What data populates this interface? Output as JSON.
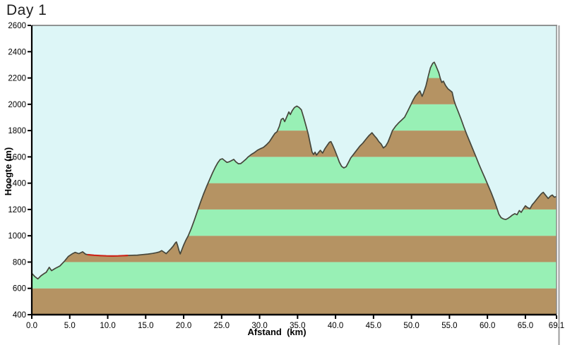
{
  "title": "Day 1",
  "chart_data": {
    "type": "area",
    "title": "Day 1",
    "xlabel": "Afstand  (km)",
    "ylabel": "Hoogte (m)",
    "xlim": [
      0,
      69.1
    ],
    "ylim": [
      400,
      2600
    ],
    "grid": false,
    "legend": false,
    "x_tick_values": [
      0,
      5,
      10,
      15,
      20,
      25,
      30,
      35,
      40,
      45,
      50,
      55,
      60,
      65,
      69.1
    ],
    "x_tick_labels": [
      "0.0",
      "5.0",
      "10.0",
      "15.0",
      "20.0",
      "25.0",
      "30.0",
      "35.0",
      "40.0",
      "45.0",
      "50.0",
      "55.0",
      "60.0",
      "65.0",
      "69.1"
    ],
    "y_tick_values": [
      400,
      600,
      800,
      1000,
      1200,
      1400,
      1600,
      1800,
      2000,
      2200,
      2400,
      2600
    ],
    "y_tick_labels": [
      "400",
      "600",
      "800",
      "1000",
      "1200",
      "1400",
      "1600",
      "1800",
      "2000",
      "2200",
      "2400",
      "2600"
    ],
    "colors": {
      "plot_background": "#ddf6f7",
      "band_brown": "#b59363",
      "band_green": "#98f0b5",
      "outline": "#45463b",
      "highlight_red": "#cd2418",
      "axis": "#000000",
      "frame_top": "#707070",
      "frame_right": "#8c8c8c",
      "window_border": "#9c9c9c",
      "title_color": "#1f1f1f"
    },
    "bands": {
      "start": 400,
      "step": 200,
      "order": [
        "band_brown",
        "band_green"
      ]
    },
    "highlight_segment": {
      "name": "red-route-section",
      "x_start": 7.4,
      "x_end": 12.6
    },
    "series": [
      {
        "name": "hoogteprofiel",
        "points": [
          [
            0,
            715
          ],
          [
            0.4,
            690
          ],
          [
            0.8,
            672
          ],
          [
            1.2,
            695
          ],
          [
            1.6,
            712
          ],
          [
            1.9,
            722
          ],
          [
            2.3,
            760
          ],
          [
            2.6,
            735
          ],
          [
            3.1,
            752
          ],
          [
            3.7,
            770
          ],
          [
            4.3,
            806
          ],
          [
            4.8,
            842
          ],
          [
            5.3,
            862
          ],
          [
            5.7,
            874
          ],
          [
            6.2,
            864
          ],
          [
            6.7,
            878
          ],
          [
            7.1,
            860
          ],
          [
            7.4,
            856
          ],
          [
            8.2,
            852
          ],
          [
            9.0,
            849
          ],
          [
            9.8,
            847
          ],
          [
            10.6,
            846
          ],
          [
            11.4,
            847
          ],
          [
            12.2,
            849
          ],
          [
            12.6,
            850
          ],
          [
            13.2,
            852
          ],
          [
            13.9,
            853
          ],
          [
            14.6,
            857
          ],
          [
            15.3,
            861
          ],
          [
            15.9,
            866
          ],
          [
            16.4,
            871
          ],
          [
            16.8,
            877
          ],
          [
            17.1,
            887
          ],
          [
            17.4,
            876
          ],
          [
            17.7,
            864
          ],
          [
            18.0,
            882
          ],
          [
            18.3,
            900
          ],
          [
            18.6,
            920
          ],
          [
            18.9,
            945
          ],
          [
            19.05,
            953
          ],
          [
            19.2,
            928
          ],
          [
            19.4,
            885
          ],
          [
            19.55,
            862
          ],
          [
            19.8,
            900
          ],
          [
            20.0,
            930
          ],
          [
            20.3,
            968
          ],
          [
            20.6,
            1000
          ],
          [
            21.0,
            1055
          ],
          [
            21.4,
            1118
          ],
          [
            21.8,
            1185
          ],
          [
            22.2,
            1252
          ],
          [
            22.6,
            1315
          ],
          [
            23.0,
            1372
          ],
          [
            23.4,
            1425
          ],
          [
            23.8,
            1478
          ],
          [
            24.2,
            1525
          ],
          [
            24.5,
            1556
          ],
          [
            24.8,
            1580
          ],
          [
            25.1,
            1586
          ],
          [
            25.4,
            1572
          ],
          [
            25.7,
            1558
          ],
          [
            26.0,
            1563
          ],
          [
            26.3,
            1572
          ],
          [
            26.6,
            1581
          ],
          [
            26.9,
            1561
          ],
          [
            27.2,
            1548
          ],
          [
            27.5,
            1549
          ],
          [
            27.8,
            1562
          ],
          [
            28.2,
            1582
          ],
          [
            28.5,
            1600
          ],
          [
            28.9,
            1618
          ],
          [
            29.3,
            1632
          ],
          [
            29.7,
            1650
          ],
          [
            30.1,
            1662
          ],
          [
            30.5,
            1672
          ],
          [
            30.9,
            1692
          ],
          [
            31.3,
            1716
          ],
          [
            31.7,
            1752
          ],
          [
            32.0,
            1778
          ],
          [
            32.3,
            1792
          ],
          [
            32.6,
            1832
          ],
          [
            32.85,
            1885
          ],
          [
            33.1,
            1893
          ],
          [
            33.3,
            1868
          ],
          [
            33.6,
            1908
          ],
          [
            33.85,
            1942
          ],
          [
            34.05,
            1922
          ],
          [
            34.3,
            1952
          ],
          [
            34.6,
            1976
          ],
          [
            34.9,
            1986
          ],
          [
            35.2,
            1976
          ],
          [
            35.5,
            1958
          ],
          [
            35.8,
            1902
          ],
          [
            36.1,
            1838
          ],
          [
            36.4,
            1775
          ],
          [
            36.7,
            1692
          ],
          [
            36.9,
            1638
          ],
          [
            37.1,
            1618
          ],
          [
            37.3,
            1636
          ],
          [
            37.5,
            1614
          ],
          [
            37.8,
            1636
          ],
          [
            38.0,
            1650
          ],
          [
            38.3,
            1629
          ],
          [
            38.6,
            1662
          ],
          [
            38.9,
            1688
          ],
          [
            39.2,
            1712
          ],
          [
            39.4,
            1716
          ],
          [
            39.6,
            1692
          ],
          [
            39.9,
            1652
          ],
          [
            40.2,
            1606
          ],
          [
            40.5,
            1560
          ],
          [
            40.8,
            1528
          ],
          [
            41.1,
            1516
          ],
          [
            41.4,
            1526
          ],
          [
            41.7,
            1558
          ],
          [
            42.0,
            1592
          ],
          [
            42.4,
            1622
          ],
          [
            42.8,
            1652
          ],
          [
            43.2,
            1682
          ],
          [
            43.6,
            1705
          ],
          [
            44.0,
            1734
          ],
          [
            44.4,
            1762
          ],
          [
            44.8,
            1784
          ],
          [
            45.1,
            1762
          ],
          [
            45.4,
            1742
          ],
          [
            45.7,
            1716
          ],
          [
            46.0,
            1698
          ],
          [
            46.3,
            1668
          ],
          [
            46.6,
            1682
          ],
          [
            46.9,
            1712
          ],
          [
            47.2,
            1755
          ],
          [
            47.5,
            1800
          ],
          [
            47.9,
            1832
          ],
          [
            48.3,
            1858
          ],
          [
            48.7,
            1880
          ],
          [
            49.1,
            1902
          ],
          [
            49.5,
            1948
          ],
          [
            49.9,
            1995
          ],
          [
            50.2,
            2032
          ],
          [
            50.5,
            2062
          ],
          [
            50.9,
            2090
          ],
          [
            51.1,
            2102
          ],
          [
            51.4,
            2060
          ],
          [
            51.6,
            2088
          ],
          [
            51.9,
            2140
          ],
          [
            52.2,
            2212
          ],
          [
            52.5,
            2278
          ],
          [
            52.8,
            2312
          ],
          [
            53.0,
            2320
          ],
          [
            53.2,
            2296
          ],
          [
            53.4,
            2268
          ],
          [
            53.6,
            2240
          ],
          [
            53.8,
            2196
          ],
          [
            54.0,
            2166
          ],
          [
            54.2,
            2176
          ],
          [
            54.5,
            2142
          ],
          [
            54.8,
            2118
          ],
          [
            55.1,
            2104
          ],
          [
            55.35,
            2092
          ],
          [
            55.6,
            2030
          ],
          [
            55.8,
            1995
          ],
          [
            56.1,
            1952
          ],
          [
            56.5,
            1892
          ],
          [
            56.9,
            1828
          ],
          [
            57.3,
            1768
          ],
          [
            57.7,
            1712
          ],
          [
            58.1,
            1656
          ],
          [
            58.5,
            1600
          ],
          [
            58.9,
            1542
          ],
          [
            59.3,
            1488
          ],
          [
            59.7,
            1436
          ],
          [
            60.1,
            1382
          ],
          [
            60.5,
            1328
          ],
          [
            60.9,
            1268
          ],
          [
            61.2,
            1218
          ],
          [
            61.5,
            1165
          ],
          [
            61.8,
            1138
          ],
          [
            62.1,
            1128
          ],
          [
            62.4,
            1124
          ],
          [
            62.7,
            1132
          ],
          [
            63.0,
            1144
          ],
          [
            63.3,
            1158
          ],
          [
            63.6,
            1168
          ],
          [
            63.9,
            1160
          ],
          [
            64.2,
            1192
          ],
          [
            64.45,
            1178
          ],
          [
            64.7,
            1202
          ],
          [
            65.0,
            1228
          ],
          [
            65.3,
            1214
          ],
          [
            65.6,
            1206
          ],
          [
            65.9,
            1236
          ],
          [
            66.2,
            1256
          ],
          [
            66.5,
            1278
          ],
          [
            66.8,
            1300
          ],
          [
            67.1,
            1320
          ],
          [
            67.35,
            1331
          ],
          [
            67.7,
            1306
          ],
          [
            68.0,
            1284
          ],
          [
            68.3,
            1302
          ],
          [
            68.55,
            1310
          ],
          [
            68.8,
            1294
          ],
          [
            69.1,
            1298
          ]
        ]
      }
    ]
  }
}
